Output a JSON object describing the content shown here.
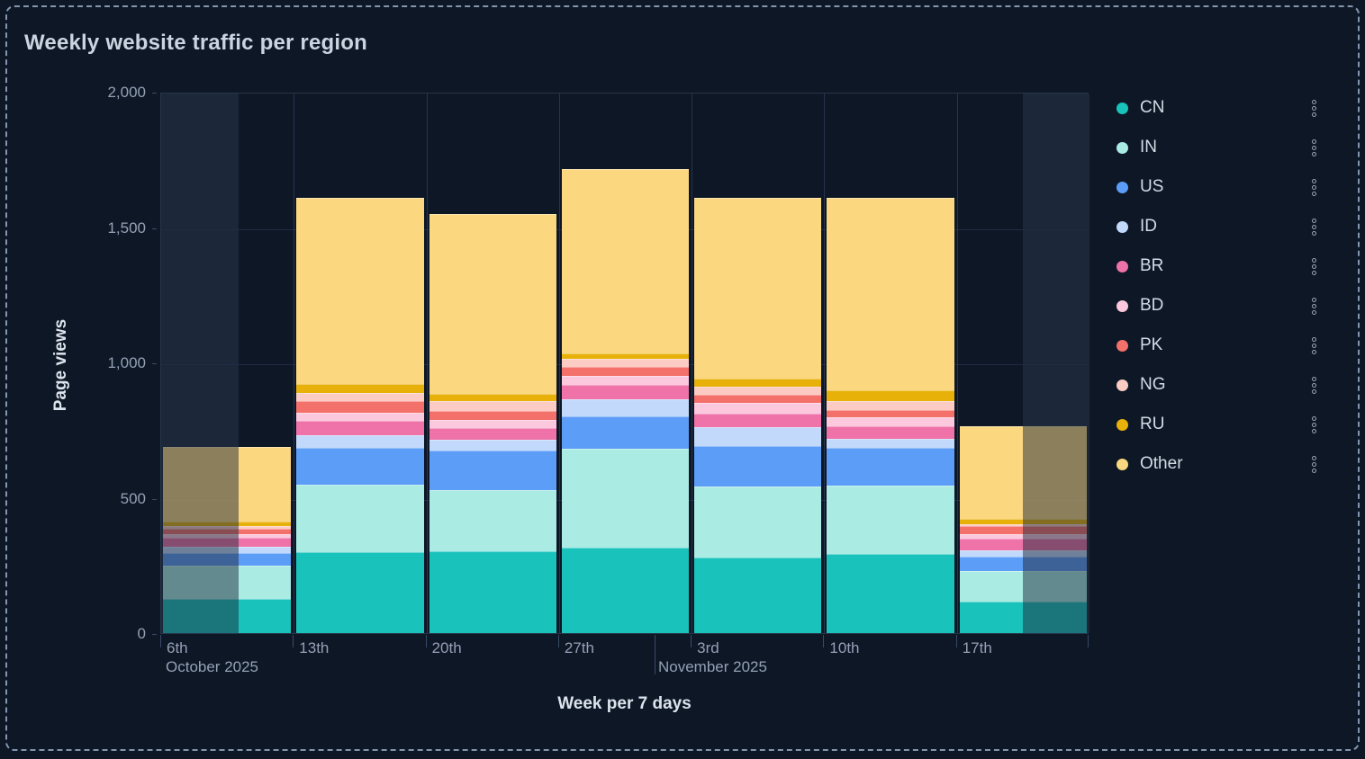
{
  "title": "Weekly website traffic per region",
  "y_axis": {
    "title": "Page views",
    "tick_labels": [
      "0",
      "500",
      "1,000",
      "1,500",
      "2,000"
    ]
  },
  "x_axis": {
    "title": "Week per 7 days",
    "tick_labels": [
      "6th",
      "13th",
      "20th",
      "27th",
      "3rd",
      "10th",
      "17th"
    ],
    "months": [
      {
        "label": "October 2025"
      },
      {
        "label": "November 2025"
      }
    ]
  },
  "legend": {
    "position": "right",
    "action_icon": "kebab-dots-icon"
  },
  "chart_data": {
    "type": "bar",
    "stacked": true,
    "title": "Weekly website traffic per region",
    "xlabel": "Week per 7 days",
    "ylabel": "Page views",
    "ylim": [
      0,
      2000
    ],
    "y_ticks": [
      0,
      500,
      1000,
      1500,
      2000
    ],
    "grid": true,
    "legend_position": "right",
    "categories": [
      "6th",
      "13th",
      "20th",
      "27th",
      "3rd",
      "10th",
      "17th"
    ],
    "month_of_first_category": "October 2025",
    "month_boundary_label": "November 2025",
    "partial_bucket_indexes": [
      0,
      6
    ],
    "series": [
      {
        "name": "CN",
        "color": "#19C3BC",
        "values": [
          127,
          300,
          302,
          315,
          280,
          291,
          116
        ]
      },
      {
        "name": "IN",
        "color": "#AAEBE4",
        "values": [
          123,
          248,
          227,
          365,
          263,
          255,
          113
        ]
      },
      {
        "name": "US",
        "color": "#5C9DF7",
        "values": [
          46,
          135,
          144,
          121,
          147,
          137,
          53
        ]
      },
      {
        "name": "ID",
        "color": "#C2D9FB",
        "values": [
          24,
          48,
          40,
          62,
          71,
          34,
          25
        ]
      },
      {
        "name": "BR",
        "color": "#EF72A8",
        "values": [
          31,
          52,
          44,
          53,
          51,
          46,
          42
        ]
      },
      {
        "name": "BD",
        "color": "#FBC8DD",
        "values": [
          15,
          32,
          29,
          33,
          38,
          33,
          18
        ]
      },
      {
        "name": "PK",
        "color": "#F4706B",
        "values": [
          18,
          41,
          35,
          33,
          31,
          29,
          27
        ]
      },
      {
        "name": "NG",
        "color": "#FCCCC4",
        "values": [
          11,
          32,
          38,
          31,
          29,
          31,
          9
        ]
      },
      {
        "name": "RU",
        "color": "#E8B109",
        "values": [
          18,
          31,
          24,
          20,
          31,
          42,
          19
        ]
      },
      {
        "name": "Other",
        "color": "#FBD77F",
        "values": [
          275,
          689,
          667,
          681,
          668,
          710,
          343
        ]
      }
    ],
    "totals": [
      688,
      1608,
      1550,
      1714,
      1609,
      1608,
      765
    ]
  }
}
